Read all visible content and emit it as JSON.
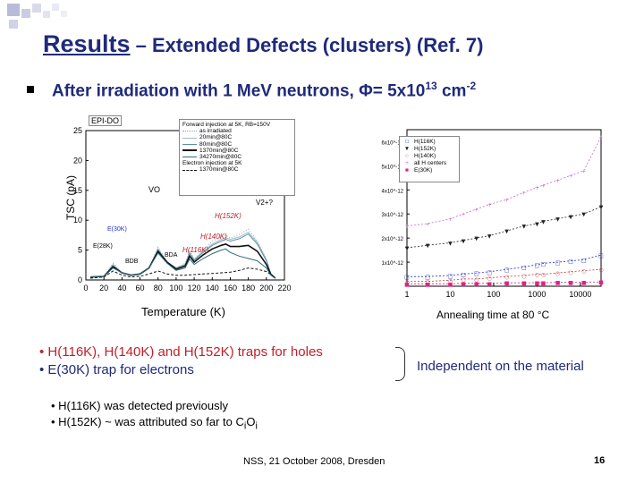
{
  "slide": {
    "title_main": "Results",
    "title_rest": " – Extended Defects (clusters) (Ref. 7)",
    "heading_text": "After irradiation with 1 MeV neutrons, Φ= 5x10",
    "heading_exp": "13",
    "heading_unit": " cm",
    "heading_unit_exp": "-2",
    "footer": "NSS, 21 October 2008, Dresden",
    "page_number": "16"
  },
  "annotations": {
    "line1": "• H(116K), H(140K) and H(152K) traps for holes",
    "line2": "• E(30K) trap for electrons",
    "brace_text": "Independent on the material",
    "note1": "• H(116K) was detected previously",
    "note2_a": "• H(152K) ~ was attributed so far to C",
    "note2_sub1": "i",
    "note2_b": "O",
    "note2_sub2": "i"
  },
  "left_plot": {
    "panel_label": "EPI-DO",
    "xlabel": "Temperature (K)",
    "ylabel": "TSC (pA)",
    "peak_labels": {
      "vo": "VO",
      "v2": "V2+?",
      "h152": "H(152K)",
      "h140": "H(140K)",
      "h116": "H(116K)",
      "e30": "E(30K)",
      "e28": "E(28K)",
      "bda": "BDA",
      "bdb": "BDB"
    },
    "legend": [
      "Forward injection at 5K, RB=150V",
      "as irradiated",
      "20min@80C",
      "80min@80C",
      "1370min@80C",
      "34270min@80C",
      "Electron injection at 5K",
      "1370min@80C"
    ]
  },
  "right_plot": {
    "xlabel": "Annealing time at 80 °C",
    "legend": [
      "H(116K)",
      "H(152K)",
      "H(140K)",
      "all H centers",
      "E(30K)"
    ],
    "colors": {
      "h116": "#2233bb",
      "h152": "#222222",
      "h140": "#cc3333",
      "all": "#cc66cc",
      "e30": "#dd2288"
    }
  },
  "chart_data": [
    {
      "type": "line",
      "title": "",
      "xlabel": "Temperature (K)",
      "ylabel": "TSC (pA)",
      "xlim": [
        0,
        220
      ],
      "ylim": [
        0,
        25
      ],
      "x_ticks": [
        0,
        20,
        40,
        60,
        80,
        100,
        120,
        140,
        160,
        180,
        200,
        220
      ],
      "y_ticks": [
        0,
        5,
        10,
        15,
        20,
        25
      ],
      "series": [
        {
          "name": "as irradiated",
          "x": [
            5,
            20,
            30,
            40,
            50,
            60,
            70,
            80,
            90,
            100,
            110,
            115,
            120,
            130,
            140,
            150,
            155,
            160,
            170,
            180,
            190,
            200,
            205,
            210
          ],
          "y": [
            0.5,
            0.6,
            2.8,
            1.2,
            0.8,
            1.0,
            2.0,
            5.5,
            3.0,
            2.0,
            2.8,
            5.0,
            3.5,
            5.0,
            6.5,
            7.2,
            7.5,
            7.0,
            7.6,
            8.5,
            6.5,
            3.5,
            1.0,
            0.3
          ]
        },
        {
          "name": "20min@80C",
          "x": [
            5,
            20,
            30,
            40,
            50,
            60,
            70,
            80,
            90,
            100,
            110,
            115,
            120,
            130,
            140,
            150,
            155,
            160,
            170,
            180,
            190,
            200,
            205,
            210
          ],
          "y": [
            0.5,
            0.6,
            2.6,
            1.2,
            0.8,
            1.0,
            2.0,
            5.2,
            3.0,
            2.0,
            2.6,
            4.6,
            3.4,
            4.8,
            6.0,
            6.8,
            7.1,
            6.8,
            7.2,
            8.0,
            6.3,
            3.4,
            1.0,
            0.3
          ]
        },
        {
          "name": "80min@80C",
          "x": [
            5,
            20,
            30,
            40,
            50,
            60,
            70,
            80,
            90,
            100,
            110,
            115,
            120,
            130,
            140,
            150,
            155,
            160,
            170,
            180,
            190,
            200,
            205,
            210
          ],
          "y": [
            0.5,
            0.6,
            2.4,
            1.2,
            0.8,
            1.0,
            2.0,
            5.0,
            3.0,
            2.0,
            2.5,
            4.4,
            3.3,
            4.6,
            5.8,
            6.5,
            6.8,
            6.5,
            6.9,
            7.7,
            6.0,
            3.2,
            1.0,
            0.3
          ]
        },
        {
          "name": "1370min@80C",
          "x": [
            5,
            20,
            30,
            40,
            50,
            60,
            70,
            80,
            90,
            100,
            110,
            115,
            120,
            130,
            140,
            150,
            155,
            160,
            170,
            180,
            190,
            200,
            205,
            210
          ],
          "y": [
            0.5,
            0.6,
            2.2,
            1.2,
            0.8,
            1.0,
            2.0,
            4.8,
            3.0,
            1.8,
            2.3,
            4.0,
            3.0,
            4.2,
            5.2,
            5.8,
            6.0,
            5.6,
            5.6,
            5.8,
            4.8,
            2.6,
            0.9,
            0.3
          ]
        },
        {
          "name": "34270min@80C",
          "x": [
            5,
            20,
            30,
            40,
            50,
            60,
            70,
            80,
            90,
            100,
            110,
            115,
            120,
            130,
            140,
            150,
            155,
            160,
            170,
            180,
            190,
            200,
            205,
            210
          ],
          "y": [
            0.5,
            0.6,
            2.0,
            1.2,
            0.8,
            1.0,
            2.0,
            4.5,
            2.8,
            1.6,
            2.0,
            3.5,
            2.6,
            3.6,
            4.4,
            5.0,
            5.2,
            4.6,
            4.0,
            3.6,
            3.2,
            2.0,
            0.8,
            0.3
          ]
        },
        {
          "name": "1370min@80C (electron injection)",
          "x": [
            5,
            20,
            30,
            40,
            50,
            60,
            70,
            80,
            90,
            100,
            110,
            120,
            130,
            140,
            150,
            160,
            170,
            180,
            190,
            200,
            210
          ],
          "y": [
            0.3,
            0.5,
            1.5,
            0.8,
            0.5,
            0.6,
            1.0,
            1.5,
            1.0,
            0.8,
            0.8,
            0.9,
            1.0,
            1.1,
            1.2,
            1.3,
            1.6,
            2.0,
            1.8,
            1.4,
            0.4
          ]
        }
      ]
    },
    {
      "type": "scatter",
      "title": "",
      "xlabel": "Annealing time at 80 °C",
      "ylabel": "",
      "x_scale": "log",
      "xlim": [
        1,
        30000
      ],
      "x_ticks": [
        1,
        10,
        100,
        1000,
        10000
      ],
      "y_ticks": [
        "1x10^-12",
        "2x10^-12",
        "3x10^-12",
        "4x10^-12",
        "5x10^-12",
        "6x10^-12"
      ],
      "ylim": [
        0,
        6.5
      ],
      "series": [
        {
          "name": "H(116K)",
          "x": [
            1,
            3,
            10,
            20,
            40,
            80,
            200,
            500,
            1000,
            1400,
            3000,
            6000,
            12000,
            30000
          ],
          "y": [
            0.4,
            0.4,
            0.45,
            0.5,
            0.55,
            0.6,
            0.7,
            0.8,
            0.9,
            0.95,
            1.0,
            1.05,
            1.1,
            1.3
          ]
        },
        {
          "name": "H(152K)",
          "x": [
            1,
            3,
            10,
            20,
            40,
            80,
            200,
            500,
            1000,
            1400,
            3000,
            6000,
            12000,
            30000
          ],
          "y": [
            1.6,
            1.7,
            1.8,
            1.9,
            2.0,
            2.1,
            2.3,
            2.5,
            2.6,
            2.7,
            2.8,
            2.9,
            3.0,
            3.3
          ]
        },
        {
          "name": "H(140K)",
          "x": [
            1,
            3,
            10,
            20,
            40,
            80,
            200,
            500,
            1000,
            1400,
            3000,
            6000,
            12000,
            30000
          ],
          "y": [
            0.2,
            0.2,
            0.25,
            0.3,
            0.3,
            0.35,
            0.4,
            0.45,
            0.5,
            0.5,
            0.55,
            0.6,
            0.65,
            0.7
          ]
        },
        {
          "name": "all H centers",
          "x": [
            1,
            3,
            10,
            20,
            40,
            80,
            200,
            500,
            1000,
            1400,
            3000,
            6000,
            12000,
            30000
          ],
          "y": [
            2.5,
            2.6,
            2.8,
            3.0,
            3.2,
            3.4,
            3.6,
            3.9,
            4.1,
            4.2,
            4.4,
            4.6,
            4.8,
            6.2
          ]
        },
        {
          "name": "E(30K)",
          "x": [
            1,
            3,
            10,
            20,
            40,
            80,
            200,
            500,
            1000,
            1400,
            3000,
            6000,
            12000,
            30000
          ],
          "y": [
            0.1,
            0.1,
            0.1,
            0.12,
            0.12,
            0.12,
            0.14,
            0.14,
            0.15,
            0.15,
            0.16,
            0.16,
            0.17,
            0.18
          ]
        }
      ]
    }
  ]
}
